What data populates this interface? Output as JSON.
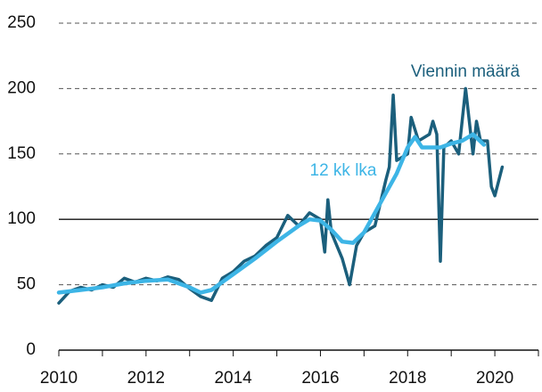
{
  "chart_data": {
    "type": "line",
    "xlim": [
      2010,
      2021
    ],
    "xticks": [
      2010,
      2012,
      2014,
      2016,
      2018,
      2020
    ],
    "xminor_ticks": [
      2011,
      2013,
      2015,
      2017,
      2019,
      2021
    ],
    "ylim": [
      0,
      250
    ],
    "yticks": [
      0,
      50,
      100,
      150,
      200,
      250
    ],
    "grid": true,
    "reference_line": 100,
    "series": [
      {
        "name": "Viennin määrä",
        "color": "#1b5f7c",
        "x": [
          2010.0,
          2010.25,
          2010.5,
          2010.75,
          2011.0,
          2011.25,
          2011.5,
          2011.75,
          2012.0,
          2012.25,
          2012.5,
          2012.75,
          2013.0,
          2013.25,
          2013.5,
          2013.75,
          2014.0,
          2014.25,
          2014.5,
          2014.75,
          2015.0,
          2015.25,
          2015.5,
          2015.75,
          2016.0,
          2016.1,
          2016.17,
          2016.25,
          2016.5,
          2016.67,
          2016.83,
          2017.0,
          2017.25,
          2017.5,
          2017.58,
          2017.67,
          2017.75,
          2018.0,
          2018.08,
          2018.25,
          2018.5,
          2018.58,
          2018.67,
          2018.75,
          2018.83,
          2019.0,
          2019.17,
          2019.25,
          2019.33,
          2019.5,
          2019.58,
          2019.67,
          2019.83,
          2019.92,
          2020.0,
          2020.17
        ],
        "values": [
          36,
          45,
          48,
          46,
          50,
          48,
          55,
          52,
          55,
          53,
          56,
          54,
          47,
          41,
          38,
          55,
          60,
          68,
          72,
          80,
          86,
          103,
          95,
          105,
          100,
          75,
          115,
          90,
          70,
          50,
          80,
          90,
          95,
          130,
          140,
          195,
          145,
          150,
          178,
          160,
          165,
          175,
          165,
          68,
          155,
          160,
          150,
          175,
          200,
          150,
          175,
          160,
          160,
          125,
          118,
          140
        ]
      },
      {
        "name": "12 kk lka",
        "color": "#3db5e6",
        "x": [
          2010.0,
          2010.5,
          2011.0,
          2011.5,
          2012.0,
          2012.5,
          2013.0,
          2013.25,
          2013.5,
          2014.0,
          2014.5,
          2015.0,
          2015.5,
          2015.75,
          2016.0,
          2016.25,
          2016.5,
          2016.75,
          2017.0,
          2017.5,
          2017.75,
          2018.0,
          2018.17,
          2018.33,
          2018.75,
          2019.0,
          2019.25,
          2019.5,
          2019.75
        ],
        "values": [
          44,
          46,
          48,
          51,
          53,
          54,
          48,
          44,
          46,
          58,
          70,
          83,
          95,
          100,
          99,
          92,
          83,
          82,
          90,
          120,
          135,
          155,
          163,
          155,
          155,
          158,
          160,
          165,
          157
        ]
      }
    ]
  }
}
